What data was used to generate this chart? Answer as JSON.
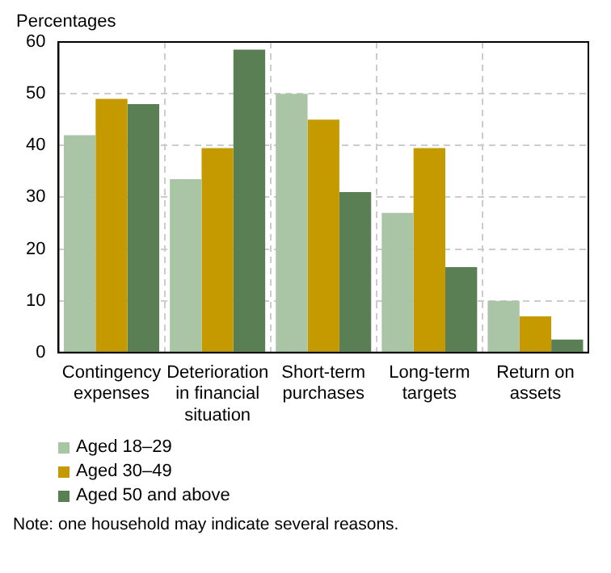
{
  "chart_data": {
    "type": "bar",
    "ylabel": "Percentages",
    "categories": [
      "Contingency expenses",
      "Deterioration in financial situation",
      "Short-term purchases",
      "Long-term targets",
      "Return on assets"
    ],
    "series": [
      {
        "name": "Aged 18–29",
        "color": "#a9c5a5",
        "values": [
          42,
          33.5,
          50,
          27,
          10
        ]
      },
      {
        "name": "Aged 30–49",
        "color": "#c49a00",
        "values": [
          49,
          39.5,
          45,
          39.5,
          7
        ]
      },
      {
        "name": "Aged 50 and above",
        "color": "#5a7f55",
        "values": [
          48,
          58.5,
          31,
          16.5,
          2.5
        ]
      }
    ],
    "ylim": [
      0,
      60
    ],
    "yticks": [
      0,
      10,
      20,
      30,
      40,
      50,
      60
    ],
    "grid": true,
    "legend": "bottom",
    "annotations": [
      "Note: one household may indicate several reasons."
    ]
  }
}
